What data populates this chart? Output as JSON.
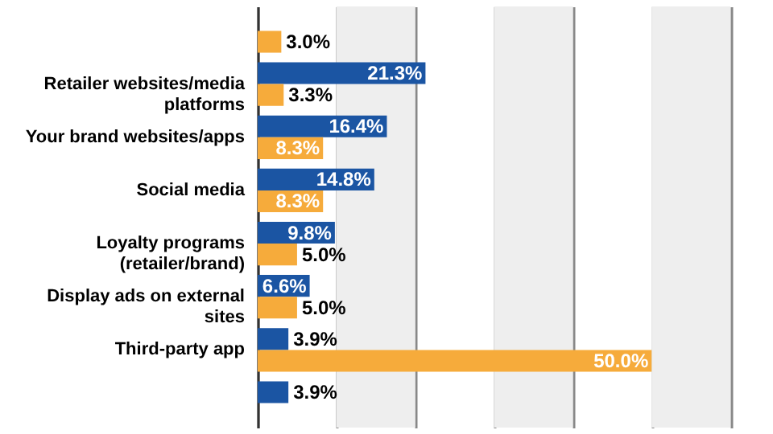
{
  "chart_data": {
    "type": "bar",
    "orientation": "horizontal",
    "categories": [
      null,
      "Retailer websites/media platforms",
      "Your brand websites/apps",
      "Social media",
      "Loyalty programs (retailer/brand)",
      "Display ads on external sites",
      "Third-party app",
      null
    ],
    "series": [
      {
        "color": "#1b55a3",
        "values": [
          null,
          21.3,
          16.4,
          14.8,
          9.8,
          6.6,
          3.9,
          3.9
        ],
        "value_labels": [
          null,
          "21.3%",
          "16.4%",
          "14.8%",
          "9.8%",
          "6.6%",
          "3.9%",
          "3.9%"
        ]
      },
      {
        "color": "#f6ab3b",
        "values": [
          3.0,
          3.3,
          8.3,
          8.3,
          5.0,
          5.0,
          50.0,
          null
        ],
        "value_labels": [
          "3.0%",
          "3.3%",
          "8.3%",
          "8.3%",
          "5.0%",
          "5.0%",
          "50.0%",
          null
        ]
      }
    ],
    "xlim": [
      0,
      65
    ],
    "xticks": [
      {
        "value": 0,
        "label": null
      },
      {
        "value": 10,
        "label": null
      },
      {
        "value": 20,
        "label": null
      },
      {
        "value": 30,
        "label": null
      },
      {
        "value": 40,
        "label": null
      },
      {
        "value": 50,
        "label": null
      },
      {
        "value": 60,
        "label": null
      }
    ],
    "bands": [
      {
        "axis": "x",
        "from": 10,
        "to": 20,
        "color": "#eeeeee"
      },
      {
        "axis": "x",
        "from": 30,
        "to": 40,
        "color": "#eeeeee"
      },
      {
        "axis": "x",
        "from": 50,
        "to": 60,
        "color": "#eeeeee"
      }
    ],
    "grid": "x",
    "tick_labels": "y"
  }
}
